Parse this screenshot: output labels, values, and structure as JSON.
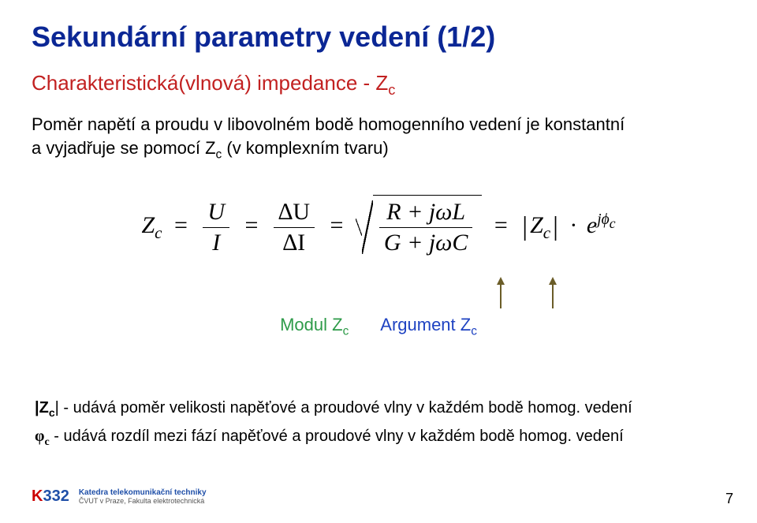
{
  "colors": {
    "title": "#0b2795",
    "subhead": "#c22121",
    "body": "#000000",
    "modul": "#2e9b49",
    "argument": "#1f43c2",
    "arrow": "#6b5d28",
    "logo_blue": "#1f4fa8",
    "logo_red": "#c00000",
    "background": "#ffffff"
  },
  "typography": {
    "base_family": "Arial",
    "formula_family": "Times New Roman",
    "title_size_pt": 27,
    "subhead_size_pt": 20,
    "body_size_pt": 17,
    "formula_size_pt": 22,
    "label_size_pt": 17,
    "footer_size_pt": 15,
    "pagenum_size_pt": 14
  },
  "title": "Sekundární parametry vedení (1/2)",
  "subhead": "Charakteristická(vlnová) impedance - Z",
  "subhead_sub": "c",
  "body": {
    "line1_a": "Poměr napětí a proudu v libovolném bodě homogenního vedení je konstantní",
    "line2_a": "a vyjadřuje se pomocí Z",
    "line2_sub": "c",
    "line2_b": " (v komplexním tvaru)"
  },
  "formula": {
    "Zc": "Z",
    "Zc_sub": "c",
    "eq": "=",
    "frac1_num": "U",
    "frac1_den": "I",
    "frac2_num": "∆U",
    "frac2_den": "∆I",
    "sqrt_num": "R + jωL",
    "sqrt_den": "G + jωC",
    "abs_Z": "Z",
    "abs_Z_sub": "c",
    "dot": "·",
    "e": "e",
    "exp_j": "j",
    "exp_phi": "ϕ",
    "exp_phi_sub": "c"
  },
  "labels": {
    "modul": "Modul Z",
    "modul_sub": "c",
    "argument": "Argument Z",
    "argument_sub": "c"
  },
  "footer": {
    "line1_sym": "|Z",
    "line1_sub": "c",
    "line1_rest": "| - udává poměr velikosti napěťové a proudové vlny v každém bodě homog. vedení",
    "line2_sym": "φ",
    "line2_sub": "c",
    "line2_rest": "  - udává rozdíl mezi fází napěťové a proudové vlny v každém bodě homog. vedení"
  },
  "logo": {
    "k": "K",
    "num": "332",
    "line1": "Katedra telekomunikační techniky",
    "line2": "ČVUT v Praze, Fakulta elektrotechnická"
  },
  "page_number": "7"
}
